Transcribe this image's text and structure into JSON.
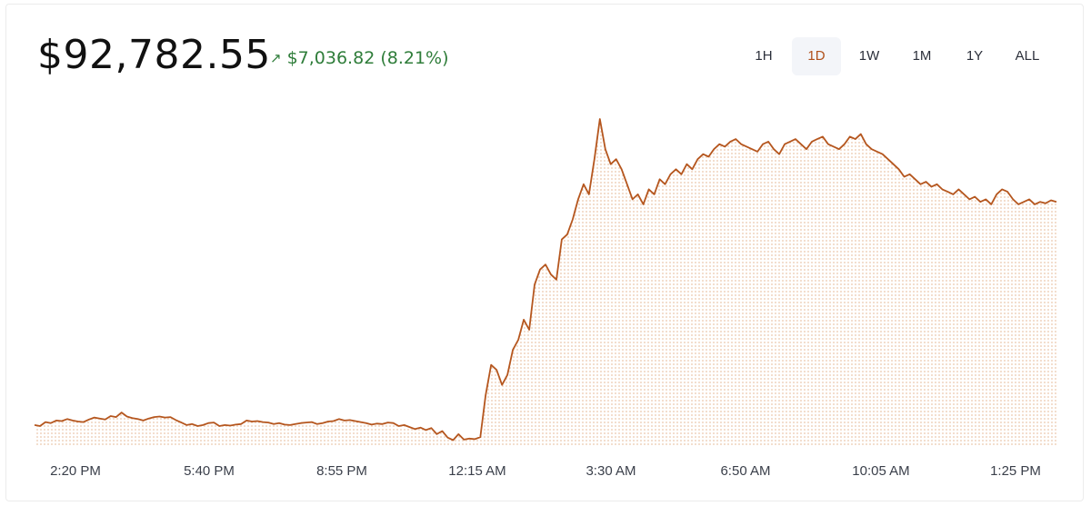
{
  "header": {
    "price": "$92,782.55",
    "change_arrow": "↗",
    "change_text": "$7,036.82 (8.21%)"
  },
  "ranges": [
    {
      "label": "1H",
      "active": false
    },
    {
      "label": "1D",
      "active": true
    },
    {
      "label": "1W",
      "active": false
    },
    {
      "label": "1M",
      "active": false
    },
    {
      "label": "1Y",
      "active": false
    },
    {
      "label": "ALL",
      "active": false
    }
  ],
  "colors": {
    "line": "#b5561e",
    "fill_dots": "#e9c3a6",
    "positive": "#2f7d3a",
    "active_range": "#b0501a"
  },
  "chart_data": {
    "type": "area",
    "title": "",
    "xlabel": "",
    "ylabel": "",
    "x_ticks": [
      "2:20 PM",
      "5:40 PM",
      "8:55 PM",
      "12:15 AM",
      "3:30 AM",
      "6:50 AM",
      "10:05 AM",
      "1:25 PM"
    ],
    "grid": false,
    "series": [
      {
        "values": [
          85700,
          85680,
          85760,
          85740,
          85790,
          85780,
          85820,
          85790,
          85770,
          85760,
          85810,
          85850,
          85830,
          85810,
          85880,
          85860,
          85950,
          85870,
          85840,
          85820,
          85790,
          85830,
          85860,
          85870,
          85850,
          85860,
          85800,
          85750,
          85700,
          85720,
          85680,
          85700,
          85740,
          85750,
          85680,
          85700,
          85690,
          85710,
          85720,
          85790,
          85770,
          85780,
          85760,
          85750,
          85720,
          85740,
          85710,
          85700,
          85720,
          85740,
          85750,
          85760,
          85720,
          85740,
          85770,
          85780,
          85820,
          85790,
          85800,
          85780,
          85760,
          85740,
          85710,
          85730,
          85720,
          85750,
          85740,
          85680,
          85700,
          85660,
          85620,
          85650,
          85600,
          85640,
          85520,
          85580,
          85450,
          85400,
          85520,
          85410,
          85430,
          85420,
          85460,
          86300,
          86900,
          86800,
          86500,
          86700,
          87200,
          87400,
          87800,
          87600,
          88500,
          88800,
          88900,
          88700,
          88600,
          89400,
          89500,
          89800,
          90200,
          90500,
          90300,
          91000,
          91800,
          91200,
          90900,
          91000,
          90800,
          90500,
          90200,
          90300,
          90100,
          90400,
          90300,
          90600,
          90500,
          90700,
          90800,
          90700,
          90900,
          90800,
          91000,
          91100,
          91050,
          91200,
          91300,
          91250,
          91350,
          91400,
          91300,
          91250,
          91200,
          91150,
          91300,
          91350,
          91200,
          91100,
          91300,
          91350,
          91400,
          91300,
          91200,
          91350,
          91400,
          91450,
          91300,
          91250,
          91200,
          91300,
          91450,
          91400,
          91500,
          91300,
          91200,
          91150,
          91100,
          91000,
          90900,
          90800,
          90650,
          90700,
          90600,
          90500,
          90550,
          90450,
          90500,
          90400,
          90350,
          90300,
          90400,
          90300,
          90200,
          90250,
          90150,
          90200,
          90100,
          90300,
          90400,
          90350,
          90200,
          90100,
          90150,
          90200,
          90100,
          90150,
          90120,
          90180,
          90150
        ]
      }
    ],
    "y_range": [
      85300,
      92000
    ]
  }
}
